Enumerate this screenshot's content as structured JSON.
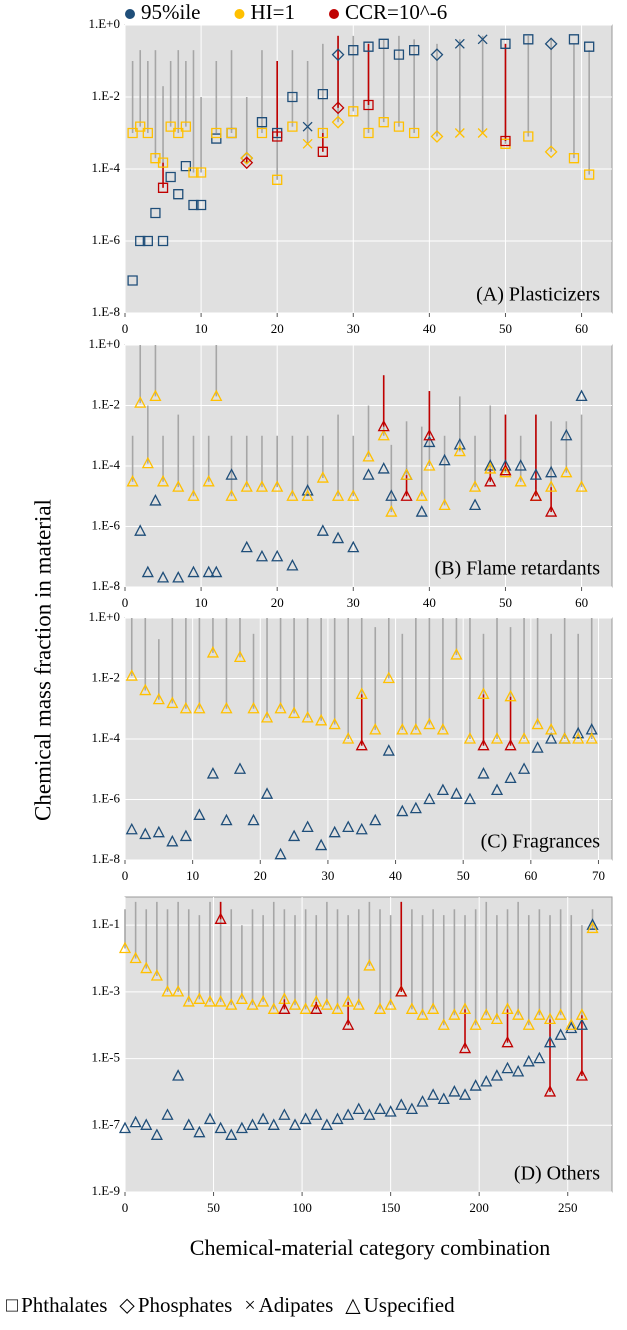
{
  "legend_top": {
    "items": [
      {
        "name": "95%ile",
        "color": "#1f4e79"
      },
      {
        "name": "HI=1",
        "color": "#ffc000"
      },
      {
        "name": "CCR=10^-6",
        "color": "#c00000"
      }
    ]
  },
  "legend_bottom": {
    "items": [
      {
        "symbol": "□",
        "name": "Phthalates"
      },
      {
        "symbol": "◇",
        "name": "Phosphates"
      },
      {
        "symbol": "×",
        "name": "Adipates"
      },
      {
        "symbol": "△",
        "name": "Uspecified"
      }
    ]
  },
  "y_label": "Chemical mass fraction in material",
  "x_label": "Chemical-material category combination",
  "chart_data": [
    {
      "type": "scatter",
      "log_y": true,
      "grid": true,
      "annotation": "(A) Plasticizers",
      "xlim": [
        0,
        64
      ],
      "xticks": [
        0,
        10,
        20,
        30,
        40,
        50,
        60
      ],
      "ylim": [
        1e-08,
        1
      ],
      "yticks": [
        {
          "value": 1e-08,
          "label": "1.E-8"
        },
        {
          "value": 1e-06,
          "label": "1.E-6"
        },
        {
          "value": 0.0001,
          "label": "1.E-4"
        },
        {
          "value": 0.01,
          "label": "1.E-2"
        },
        {
          "value": 1,
          "label": "1.E+0"
        }
      ],
      "x": [
        1,
        2,
        3,
        4,
        5,
        6,
        7,
        8,
        9,
        10,
        12,
        14,
        16,
        18,
        20,
        22,
        24,
        26,
        28,
        30,
        32,
        34,
        36,
        38,
        41,
        44,
        47,
        50,
        53,
        56,
        59,
        61
      ],
      "marker": [
        "square",
        "square",
        "square",
        "square",
        "square",
        "square",
        "square",
        "square",
        "square",
        "square",
        "square",
        "square",
        "diamond",
        "square",
        "square",
        "square",
        "cross",
        "square",
        "diamond",
        "square",
        "square",
        "square",
        "square",
        "square",
        "diamond",
        "cross",
        "cross",
        "square",
        "square",
        "diamond",
        "square",
        "square"
      ],
      "series": [
        {
          "color": "#1f4e79",
          "values": [
            8e-08,
            1e-06,
            1e-06,
            6e-06,
            1e-06,
            6e-05,
            2e-05,
            0.00012,
            1e-05,
            1e-05,
            0.0007,
            0.001,
            0.0002,
            0.002,
            0.001,
            0.01,
            0.0015,
            0.012,
            0.15,
            0.2,
            0.25,
            0.3,
            0.15,
            0.2,
            0.15,
            0.3,
            0.4,
            0.3,
            0.4,
            0.3,
            0.4,
            0.25
          ]
        },
        {
          "color": "#ffc000",
          "values": [
            0.001,
            0.0015,
            0.001,
            0.0002,
            0.00015,
            0.0015,
            0.001,
            0.0015,
            8e-05,
            8e-05,
            0.001,
            0.001,
            0.0002,
            0.001,
            5e-05,
            0.0015,
            0.0005,
            0.001,
            0.002,
            0.004,
            0.001,
            0.002,
            0.0015,
            0.001,
            0.0008,
            0.001,
            0.001,
            0.0005,
            0.0008,
            0.0003,
            0.0002,
            7e-05
          ]
        },
        {
          "color": "#c00000",
          "values": [
            null,
            null,
            null,
            null,
            3e-05,
            null,
            null,
            null,
            null,
            null,
            null,
            null,
            0.00015,
            null,
            0.0008,
            null,
            null,
            0.0003,
            0.005,
            null,
            0.006,
            null,
            null,
            null,
            null,
            null,
            null,
            0.0006,
            null,
            null,
            null,
            null
          ]
        }
      ],
      "upper": [
        0.1,
        0.2,
        0.1,
        0.2,
        0.02,
        0.1,
        0.2,
        0.1,
        0.2,
        0.01,
        0.1,
        0.2,
        0.01,
        0.2,
        0.1,
        0.2,
        0.1,
        0.3,
        0.5,
        0.5,
        0.3,
        0.4,
        0.5,
        0.4,
        0.3,
        0.4,
        0.5,
        0.3,
        0.5,
        0.4,
        0.3,
        0.2
      ]
    },
    {
      "type": "scatter",
      "log_y": true,
      "grid": true,
      "annotation": "(B) Flame retardants",
      "xlim": [
        0,
        64
      ],
      "xticks": [
        0,
        10,
        20,
        30,
        40,
        50,
        60
      ],
      "ylim": [
        1e-08,
        1
      ],
      "yticks": [
        {
          "value": 1e-08,
          "label": "1.E-8"
        },
        {
          "value": 1e-06,
          "label": "1.E-6"
        },
        {
          "value": 0.0001,
          "label": "1.E-4"
        },
        {
          "value": 0.01,
          "label": "1.E-2"
        },
        {
          "value": 1,
          "label": "1.E+0"
        }
      ],
      "x": [
        1,
        2,
        3,
        4,
        5,
        7,
        9,
        11,
        12,
        14,
        16,
        18,
        20,
        22,
        24,
        26,
        28,
        30,
        32,
        34,
        35,
        37,
        39,
        40,
        42,
        44,
        46,
        48,
        50,
        52,
        54,
        56,
        58,
        60
      ],
      "marker": "triangle",
      "series": [
        {
          "color": "#1f4e79",
          "values": [
            null,
            7e-07,
            3e-08,
            7e-06,
            2e-08,
            2e-08,
            3e-08,
            3e-08,
            3e-08,
            5e-05,
            2e-07,
            1e-07,
            1e-07,
            5e-08,
            1.5e-05,
            7e-07,
            4e-07,
            2e-07,
            5e-05,
            8e-05,
            1e-05,
            5e-05,
            3e-06,
            0.0006,
            0.00015,
            0.0005,
            5e-06,
            0.0001,
            0.0001,
            0.0001,
            5e-05,
            6e-05,
            0.001,
            0.02
          ]
        },
        {
          "color": "#ffc000",
          "values": [
            3e-05,
            0.012,
            0.00012,
            0.02,
            3e-05,
            2e-05,
            1e-05,
            3e-05,
            0.02,
            1e-05,
            2e-05,
            2e-05,
            2e-05,
            1e-05,
            1e-05,
            4e-05,
            1e-05,
            1e-05,
            0.0002,
            0.001,
            3e-06,
            5e-05,
            1e-05,
            0.0001,
            5e-06,
            0.0003,
            2e-05,
            8e-05,
            6e-05,
            3e-05,
            1e-05,
            2e-05,
            6e-05,
            2e-05
          ]
        },
        {
          "color": "#c00000",
          "values": [
            null,
            null,
            null,
            null,
            null,
            null,
            null,
            null,
            null,
            null,
            null,
            null,
            null,
            null,
            null,
            null,
            null,
            null,
            null,
            0.002,
            null,
            1e-05,
            null,
            0.001,
            null,
            null,
            null,
            3e-05,
            7e-05,
            null,
            1e-05,
            3e-06,
            null,
            null
          ]
        }
      ],
      "upper": [
        0.001,
        1,
        0.01,
        1,
        0.001,
        0.005,
        0.001,
        0.001,
        1,
        0.001,
        0.001,
        0.001,
        0.001,
        0.001,
        0.001,
        0.001,
        0.005,
        0.001,
        0.01,
        0.1,
        0.0005,
        0.003,
        0.002,
        0.03,
        0.001,
        0.02,
        0.001,
        0.01,
        0.005,
        0.001,
        0.005,
        0.003,
        0.003,
        0.005
      ]
    },
    {
      "type": "scatter",
      "log_y": true,
      "grid": true,
      "annotation": "(C) Fragrances",
      "xlim": [
        0,
        72
      ],
      "xticks": [
        0,
        10,
        20,
        30,
        40,
        50,
        60,
        70
      ],
      "ylim": [
        1e-08,
        1
      ],
      "yticks": [
        {
          "value": 1e-08,
          "label": "1.E-8"
        },
        {
          "value": 1e-06,
          "label": "1.E-6"
        },
        {
          "value": 0.0001,
          "label": "1.E-4"
        },
        {
          "value": 0.01,
          "label": "1.E-2"
        },
        {
          "value": 1,
          "label": "1.E+0"
        }
      ],
      "x": [
        1,
        3,
        5,
        7,
        9,
        11,
        13,
        15,
        17,
        19,
        21,
        23,
        25,
        27,
        29,
        31,
        33,
        35,
        37,
        39,
        41,
        43,
        45,
        47,
        49,
        51,
        53,
        55,
        57,
        59,
        61,
        63,
        65,
        67,
        69
      ],
      "marker": "triangle",
      "series": [
        {
          "color": "#1f4e79",
          "values": [
            1e-07,
            7e-08,
            8e-08,
            4e-08,
            6e-08,
            3e-07,
            7e-06,
            2e-07,
            1e-05,
            2e-07,
            1.5e-06,
            1.5e-08,
            6e-08,
            1.2e-07,
            3e-08,
            8e-08,
            1.2e-07,
            1e-07,
            2e-07,
            4e-05,
            4e-07,
            5e-07,
            1e-06,
            2e-06,
            1.5e-06,
            1e-06,
            7e-06,
            2e-06,
            5e-06,
            1e-05,
            5e-05,
            0.0001,
            0.0001,
            0.00015,
            0.0002
          ]
        },
        {
          "color": "#ffc000",
          "values": [
            0.012,
            0.004,
            0.002,
            0.0015,
            0.001,
            0.001,
            0.07,
            0.001,
            0.05,
            0.001,
            0.0005,
            0.001,
            0.0007,
            0.0005,
            0.0004,
            0.0003,
            0.0001,
            0.003,
            0.0002,
            0.01,
            0.0002,
            0.0002,
            0.0003,
            0.0002,
            0.06,
            0.0001,
            0.003,
            0.0001,
            0.0025,
            0.0001,
            0.0003,
            0.0002,
            0.0001,
            0.0001,
            0.0001
          ]
        },
        {
          "color": "#c00000",
          "values": [
            null,
            null,
            null,
            null,
            null,
            null,
            null,
            null,
            null,
            null,
            null,
            null,
            null,
            null,
            null,
            null,
            null,
            6e-05,
            null,
            null,
            null,
            null,
            null,
            null,
            null,
            null,
            6e-05,
            null,
            6e-05,
            null,
            null,
            null,
            null,
            null,
            null
          ]
        }
      ],
      "upper": [
        1,
        1,
        0.2,
        1,
        1,
        1,
        1,
        1,
        1,
        0.3,
        1,
        1,
        1,
        1,
        1,
        1,
        1,
        1,
        0.5,
        1,
        0.3,
        1,
        1,
        1,
        1,
        1,
        0.3,
        1,
        0.5,
        1,
        1,
        0.3,
        1,
        0.3,
        1
      ]
    },
    {
      "type": "scatter",
      "log_y": true,
      "grid": true,
      "annotation": "(D) Others",
      "xlim": [
        0,
        275
      ],
      "xticks": [
        0,
        50,
        100,
        150,
        200,
        250
      ],
      "ylim": [
        1e-09,
        0.7
      ],
      "yticks": [
        {
          "value": 1e-09,
          "label": "1.E-9"
        },
        {
          "value": 1e-07,
          "label": "1.E-7"
        },
        {
          "value": 1e-05,
          "label": "1.E-5"
        },
        {
          "value": 0.001,
          "label": "1.E-3"
        },
        {
          "value": 0.1,
          "label": "1.E-1"
        }
      ],
      "x": [
        0,
        6,
        12,
        18,
        24,
        30,
        36,
        42,
        48,
        54,
        60,
        66,
        72,
        78,
        84,
        90,
        96,
        102,
        108,
        114,
        120,
        126,
        132,
        138,
        144,
        150,
        156,
        162,
        168,
        174,
        180,
        186,
        192,
        198,
        204,
        210,
        216,
        222,
        228,
        234,
        240,
        246,
        252,
        258,
        264
      ],
      "marker": "triangle",
      "series": [
        {
          "color": "#1f4e79",
          "values": [
            8e-08,
            1.2e-07,
            1e-07,
            5e-08,
            2e-07,
            3e-06,
            1e-07,
            6e-08,
            1.5e-07,
            8e-08,
            5e-08,
            8e-08,
            1e-07,
            1.5e-07,
            1e-07,
            2e-07,
            1e-07,
            1.5e-07,
            2e-07,
            1e-07,
            1.5e-07,
            2e-07,
            3e-07,
            2e-07,
            3e-07,
            2.5e-07,
            4e-07,
            3e-07,
            5e-07,
            8e-07,
            6e-07,
            1e-06,
            8e-07,
            1.5e-06,
            2e-06,
            3e-06,
            5e-06,
            4e-06,
            8e-06,
            1e-05,
            3e-05,
            5e-05,
            8e-05,
            0.0001,
            0.1
          ]
        },
        {
          "color": "#ffc000",
          "values": [
            0.02,
            0.01,
            0.005,
            0.003,
            0.001,
            0.001,
            0.0005,
            0.0006,
            0.0005,
            0.0005,
            0.0004,
            0.0006,
            0.0004,
            0.0005,
            0.0003,
            0.0006,
            0.0004,
            0.0003,
            0.0005,
            0.0004,
            0.0003,
            0.0005,
            0.0004,
            0.006,
            0.0003,
            0.0004,
            0.001,
            0.0003,
            0.0002,
            0.0003,
            0.0001,
            0.0002,
            0.0003,
            0.0001,
            0.0002,
            0.00015,
            0.0003,
            0.0002,
            0.0001,
            0.0002,
            0.00015,
            0.0002,
            0.0001,
            0.0002,
            0.08
          ]
        },
        {
          "color": "#c00000",
          "values": [
            null,
            null,
            null,
            null,
            null,
            null,
            null,
            null,
            null,
            0.15,
            null,
            null,
            null,
            null,
            null,
            0.0003,
            null,
            null,
            0.0003,
            null,
            null,
            0.0001,
            null,
            null,
            null,
            null,
            0.001,
            null,
            null,
            null,
            null,
            null,
            2e-05,
            null,
            null,
            null,
            3e-05,
            null,
            null,
            null,
            1e-06,
            null,
            null,
            3e-06,
            null
          ]
        }
      ],
      "upper": [
        0.3,
        0.5,
        0.3,
        0.5,
        0.3,
        0.5,
        0.3,
        0.2,
        0.5,
        0.5,
        0.3,
        0.1,
        0.3,
        0.2,
        0.5,
        0.3,
        0.2,
        0.3,
        0.2,
        0.5,
        0.3,
        0.2,
        0.3,
        0.5,
        0.3,
        0.2,
        0.5,
        0.3,
        0.2,
        0.3,
        0.2,
        0.3,
        0.2,
        0.3,
        0.5,
        0.2,
        0.3,
        0.5,
        0.2,
        0.3,
        0.2,
        0.3,
        0.2,
        0.1,
        0.3
      ]
    }
  ]
}
